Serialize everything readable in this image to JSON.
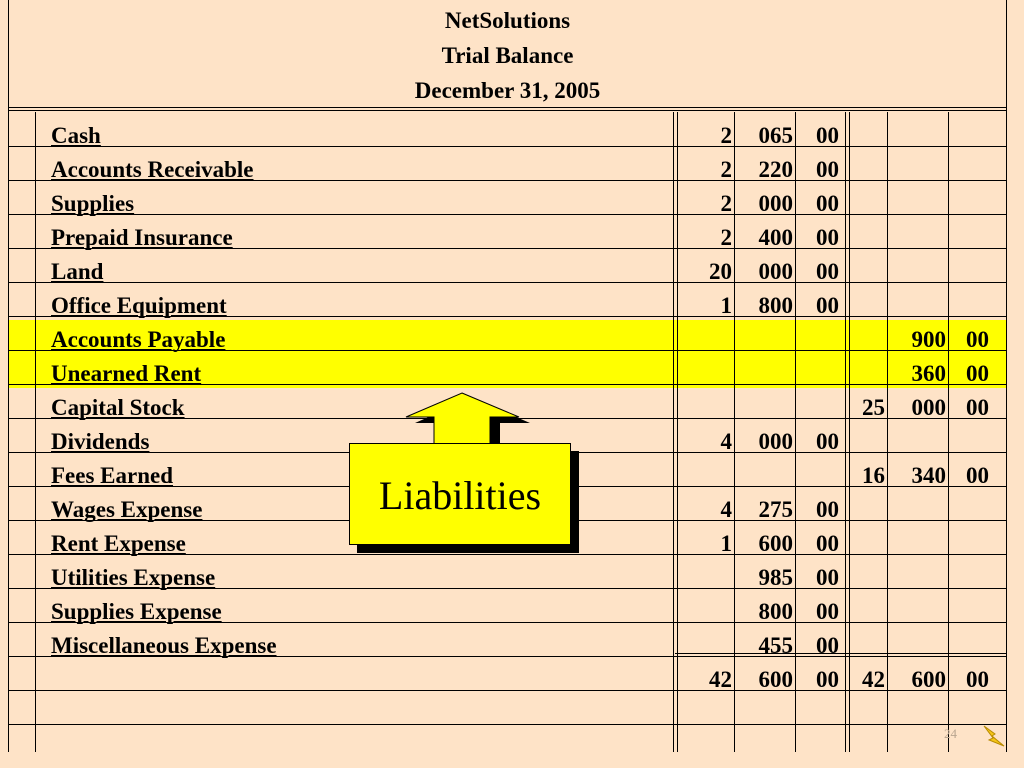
{
  "header": {
    "company": "NetSolutions",
    "title": "Trial Balance",
    "date": "December 31, 2005"
  },
  "accounts": [
    {
      "name": "Cash",
      "debit": [
        "2",
        "065",
        "00"
      ],
      "credit": [
        "",
        "",
        ""
      ]
    },
    {
      "name": "Accounts Receivable",
      "debit": [
        "2",
        "220",
        "00"
      ],
      "credit": [
        "",
        "",
        ""
      ]
    },
    {
      "name": "Supplies",
      "debit": [
        "2",
        "000",
        "00"
      ],
      "credit": [
        "",
        "",
        ""
      ]
    },
    {
      "name": "Prepaid Insurance",
      "debit": [
        "2",
        "400",
        "00"
      ],
      "credit": [
        "",
        "",
        ""
      ]
    },
    {
      "name": "Land",
      "debit": [
        "20",
        "000",
        "00"
      ],
      "credit": [
        "",
        "",
        ""
      ]
    },
    {
      "name": "Office Equipment",
      "debit": [
        "1",
        "800",
        "00"
      ],
      "credit": [
        "",
        "",
        ""
      ]
    },
    {
      "name": "Accounts Payable",
      "debit": [
        "",
        "",
        ""
      ],
      "credit": [
        "",
        "900",
        "00"
      ],
      "highlight": true
    },
    {
      "name": "Unearned Rent",
      "debit": [
        "",
        "",
        ""
      ],
      "credit": [
        "",
        "360",
        "00"
      ],
      "highlight": true
    },
    {
      "name": "Capital Stock",
      "debit": [
        "",
        "",
        ""
      ],
      "credit": [
        "25",
        "000",
        "00"
      ]
    },
    {
      "name": "Dividends",
      "debit": [
        "4",
        "000",
        "00"
      ],
      "credit": [
        "",
        "",
        ""
      ]
    },
    {
      "name": "Fees Earned",
      "debit": [
        "",
        "",
        ""
      ],
      "credit": [
        "16",
        "340",
        "00"
      ]
    },
    {
      "name": "Wages Expense",
      "debit": [
        "4",
        "275",
        "00"
      ],
      "credit": [
        "",
        "",
        ""
      ]
    },
    {
      "name": "Rent Expense",
      "debit": [
        "1",
        "600",
        "00"
      ],
      "credit": [
        "",
        "",
        ""
      ]
    },
    {
      "name": "Utilities Expense",
      "debit": [
        "",
        "985",
        "00"
      ],
      "credit": [
        "",
        "",
        ""
      ]
    },
    {
      "name": "Supplies Expense",
      "debit": [
        "",
        "800",
        "00"
      ],
      "credit": [
        "",
        "",
        ""
      ]
    },
    {
      "name": "Miscellaneous Expense",
      "debit": [
        "",
        "455",
        "00"
      ],
      "credit": [
        "",
        "",
        ""
      ]
    }
  ],
  "totals": {
    "debit": [
      "42",
      "600",
      "00"
    ],
    "credit": [
      "42",
      "600",
      "00"
    ]
  },
  "callout": {
    "text": "Liabilities"
  },
  "slide_number": "24",
  "colors": {
    "background": "#fee3c7",
    "highlight": "#ffff00",
    "rule": "#000000"
  },
  "icons": [
    "up-arrow-icon",
    "lightning-bolt-icon"
  ]
}
